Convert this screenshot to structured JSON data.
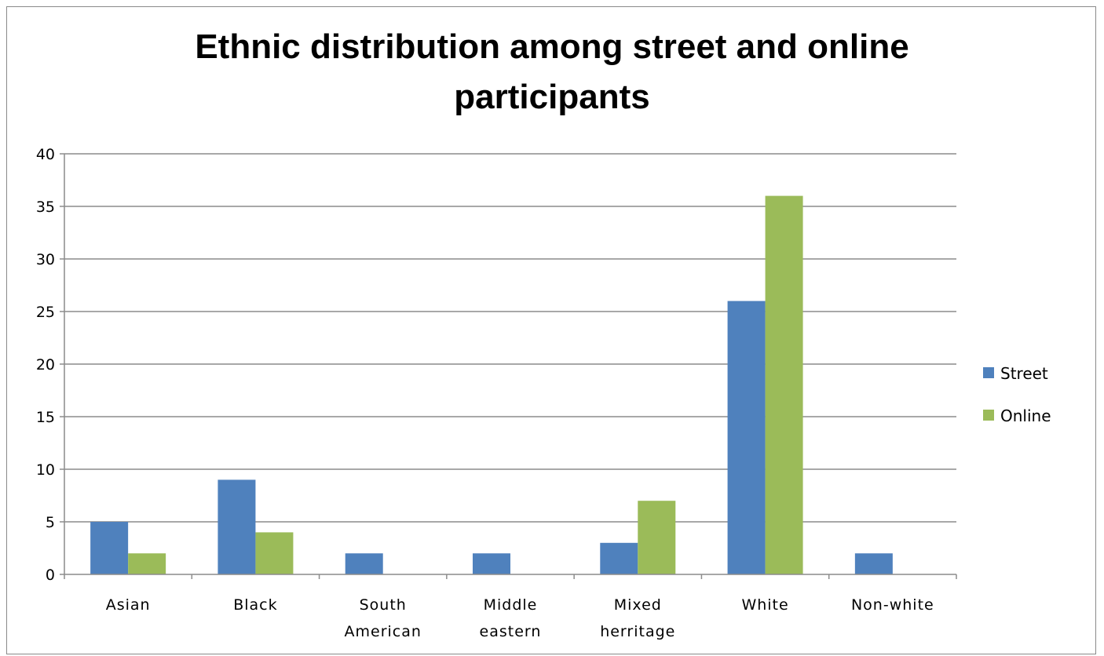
{
  "chart_data": {
    "type": "bar",
    "title": "Ethnic distribution among street and online participants",
    "title_lines": [
      "Ethnic distribution among street and online",
      "participants"
    ],
    "categories": [
      "Asian",
      "Black",
      "South American",
      "Middle eastern",
      "Mixed herritage",
      "White",
      "Non-white"
    ],
    "category_lines": [
      [
        "Asian"
      ],
      [
        "Black"
      ],
      [
        "South",
        "American"
      ],
      [
        "Middle",
        "eastern"
      ],
      [
        "Mixed",
        "herritage"
      ],
      [
        "White"
      ],
      [
        "Non-white"
      ]
    ],
    "series": [
      {
        "name": "Street",
        "color": "#4F81BD",
        "values": [
          5,
          9,
          2,
          2,
          3,
          26,
          2
        ]
      },
      {
        "name": "Online",
        "color": "#9BBB59",
        "values": [
          2,
          4,
          0,
          0,
          7,
          36,
          0
        ]
      }
    ],
    "ylim": [
      0,
      40
    ],
    "yticks": [
      0,
      5,
      10,
      15,
      20,
      25,
      30,
      35,
      40
    ],
    "grid": true,
    "legend_position": "right"
  }
}
